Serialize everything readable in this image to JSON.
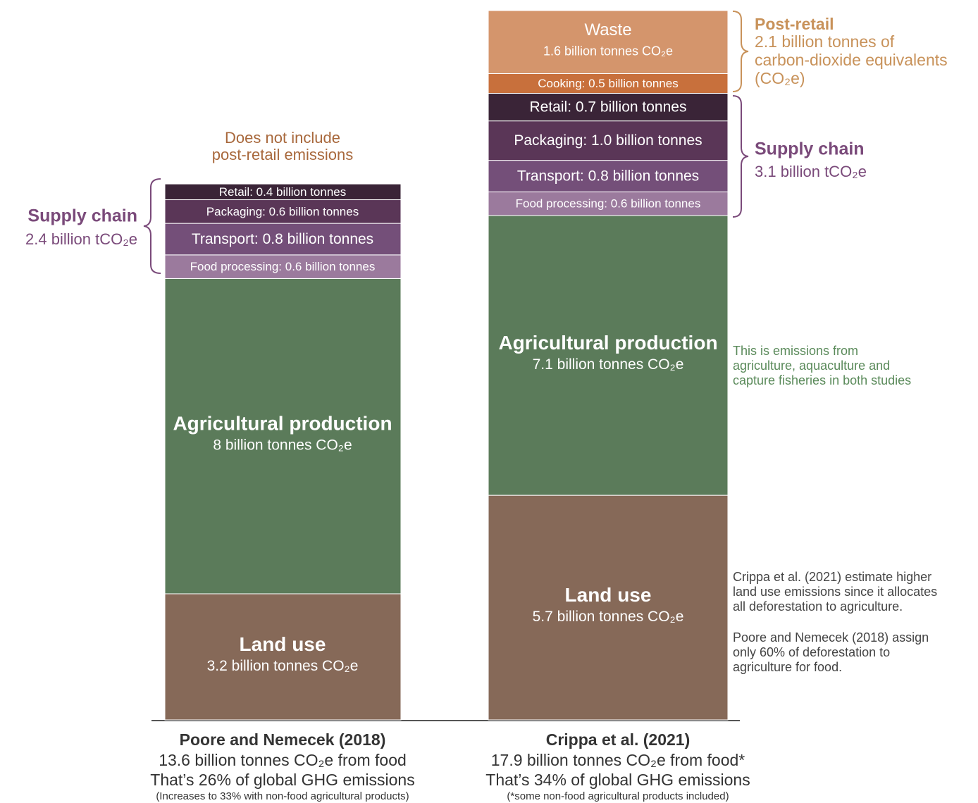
{
  "chart_data": {
    "type": "bar",
    "stacked": true,
    "categories": [
      "Poore and Nemecek (2018)",
      "Crippa et al. (2021)"
    ],
    "category_notes": [
      [
        "13.6 billion tonnes CO₂e from food",
        "That’s 26% of global GHG emissions",
        "(Increases to 33% with non-food agricultural products)"
      ],
      [
        "17.9 billion tonnes CO₂e from food*",
        "That’s 34% of global GHG emissions",
        "(*some non-food agricultural products included)"
      ]
    ],
    "series": [
      {
        "name": "Land use",
        "color": "#866958",
        "values": [
          3.2,
          5.7
        ],
        "value_labels": [
          "3.2 billion tonnes CO₂e",
          "5.7 billion tonnes CO₂e"
        ]
      },
      {
        "name": "Agricultural production",
        "color": "#5b7b5a",
        "values": [
          8,
          7.1
        ],
        "value_labels": [
          "8 billion tonnes CO₂e",
          "7.1 billion tonnes CO₂e"
        ]
      },
      {
        "color": "#9b7a9d",
        "values": [
          0.6,
          0.6
        ],
        "value_labels": [
          "Food processing: 0.6 billion tonnes",
          "Food processing: 0.6 billion tonnes"
        ]
      },
      {
        "color": "#744f79",
        "values": [
          0.8,
          0.8
        ],
        "value_labels": [
          "Transport: 0.8 billion tonnes",
          "Transport: 0.8 billion tonnes"
        ]
      },
      {
        "color": "#5a3657",
        "values": [
          0.6,
          1.0
        ],
        "value_labels": [
          "Packaging: 0.6 billion tonnes",
          "Packaging: 1.0 billion tonnes"
        ]
      },
      {
        "color": "#3a2437",
        "values": [
          0.4,
          0.7
        ],
        "value_labels": [
          "Retail: 0.4 billion tonnes",
          "Retail: 0.7 billion tonnes"
        ]
      },
      {
        "color": "#c8703c",
        "values": [
          null,
          0.5
        ],
        "value_labels": [
          null,
          "Cooking: 0.5 billion tonnes"
        ]
      },
      {
        "name": "Waste",
        "color": "#d4956c",
        "values": [
          null,
          1.6
        ],
        "value_labels": [
          null,
          "1.6 billion tonnes CO₂e"
        ]
      }
    ],
    "annotations": [
      {
        "lines": [
          "Does not include",
          "post-retail emissions"
        ]
      },
      {
        "title": "Supply chain",
        "lines": [
          "2.4 billion tCO₂e"
        ]
      },
      {
        "title": "Post-retail",
        "lines": [
          "2.1 billion tonnes of",
          "carbon-dioxide equivalents",
          "(CO₂e)"
        ]
      },
      {
        "title": "Supply chain",
        "lines": [
          "3.1 billion tCO₂e"
        ]
      },
      {
        "lines": [
          "This is emissions from",
          "agriculture, aquaculture and",
          "capture fisheries in both studies"
        ]
      },
      {
        "lines": [
          "Crippa et al. (2021) estimate higher",
          "land use emissions since it allocates",
          "all deforestation to agriculture."
        ]
      },
      {
        "lines": [
          "Poore and Nemecek (2018) assign",
          "only 60% of deforestation to",
          "agriculture for food."
        ]
      }
    ]
  }
}
